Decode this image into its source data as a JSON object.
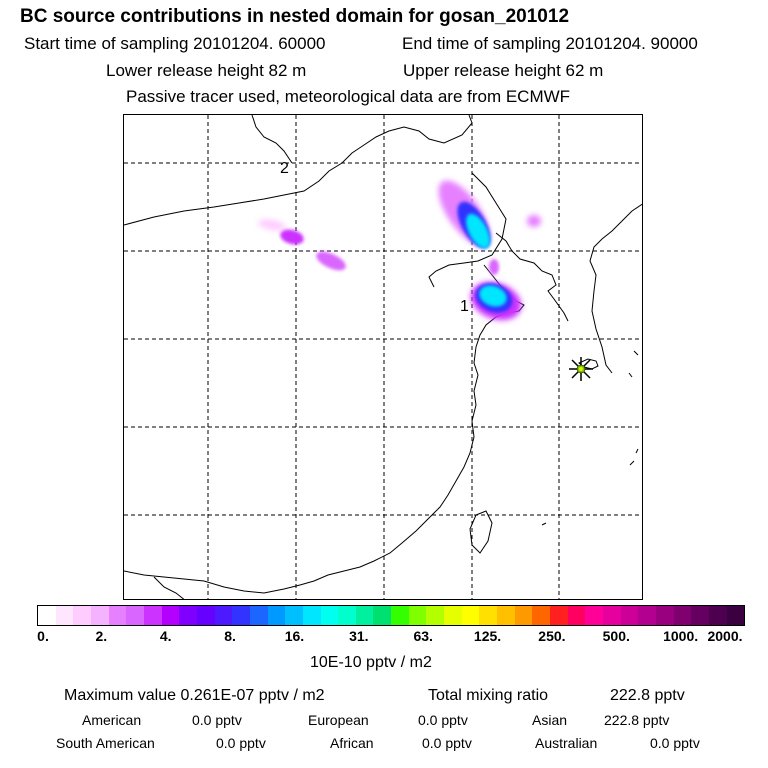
{
  "header": {
    "title": "BC  source contributions in nested domain for gosan_201012",
    "start_label": "Start time of sampling 20101204. 60000",
    "end_label": "End time of sampling 20101204. 90000",
    "lower_label": "Lower release height   82 m",
    "upper_label": "Upper release height   62 m",
    "tracer_label": "Passive tracer used, meteorological data are from ECMWF"
  },
  "map": {
    "region_labels": [
      "2",
      "1"
    ],
    "receptor_marker": "star-icon"
  },
  "colorbar": {
    "colors": [
      "#ffffff",
      "#ffe6ff",
      "#ffccff",
      "#f5b3ff",
      "#e680ff",
      "#d966ff",
      "#cc33ff",
      "#b300ff",
      "#8000ff",
      "#6600ff",
      "#4d1aff",
      "#3333ff",
      "#1a66ff",
      "#0099ff",
      "#00bfff",
      "#00e6ff",
      "#00ffee",
      "#00ffcc",
      "#00f0a0",
      "#00e070",
      "#33ff00",
      "#80ff00",
      "#b3ff00",
      "#e6ff00",
      "#ffff00",
      "#ffe000",
      "#ffc000",
      "#ff9900",
      "#ff6600",
      "#ff2020",
      "#ff0060",
      "#ff0099",
      "#e6009e",
      "#cc0099",
      "#b30090",
      "#990080",
      "#800070",
      "#660060",
      "#4d0050",
      "#3a0040"
    ],
    "ticks": [
      "0.",
      "2.",
      "4.",
      "8.",
      "16.",
      "31.",
      "63.",
      "125.",
      "250.",
      "500.",
      "1000.",
      "2000."
    ],
    "unit_label": "10E-10 pptv / m2"
  },
  "footer": {
    "max_label": "Maximum value  0.261E-07 pptv / m2",
    "total_label": "Total mixing ratio",
    "total_value": "222.8 pptv",
    "american_label": "American",
    "american_value": "0.0 pptv",
    "european_label": "European",
    "european_value": "0.0 pptv",
    "asian_label": "Asian",
    "asian_value": "222.8 pptv",
    "south_american_label": "South American",
    "south_american_value": "0.0 pptv",
    "african_label": "African",
    "african_value": "0.0 pptv",
    "australian_label": "Australian",
    "australian_value": "0.0 pptv"
  }
}
